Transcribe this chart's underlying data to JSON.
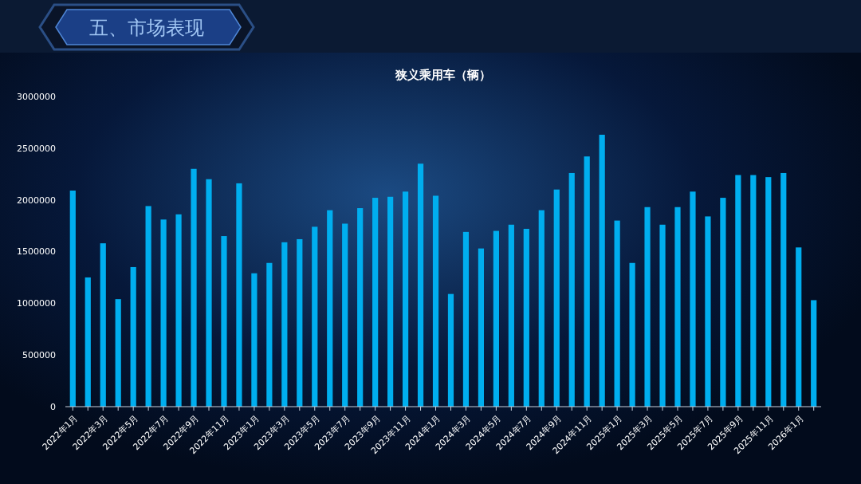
{
  "chart_data": {
    "type": "bar",
    "title": "狭义乘用车（辆）",
    "annotations": [
      "五、市场表现"
    ],
    "categories": [
      "2022年1月",
      null,
      "2022年3月",
      null,
      "2022年5月",
      null,
      "2022年7月",
      null,
      "2022年9月",
      null,
      "2022年11月",
      null,
      "2023年1月",
      null,
      "2023年3月",
      null,
      "2023年5月",
      null,
      "2023年7月",
      null,
      "2023年9月",
      null,
      "2023年11月",
      null,
      "2024年1月",
      null,
      "2024年3月",
      null,
      "2024年5月",
      null,
      "2024年7月",
      null,
      "2024年9月",
      null,
      "2024年11月",
      null,
      "2025年1月",
      null,
      "2025年3月",
      null,
      "2025年5月",
      null,
      "2025年7月",
      null,
      "2025年9月",
      null,
      "2025年11月",
      null,
      "2026年1月",
      null
    ],
    "values": [
      2090000,
      1250000,
      1580000,
      1040000,
      1350000,
      1940000,
      1810000,
      1860000,
      2300000,
      2200000,
      1650000,
      2160000,
      1290000,
      1390000,
      1590000,
      1620000,
      1740000,
      1900000,
      1770000,
      1920000,
      2020000,
      2030000,
      2080000,
      2350000,
      2040000,
      1090000,
      1690000,
      1530000,
      1700000,
      1760000,
      1720000,
      1900000,
      2100000,
      2260000,
      2420000,
      2630000,
      1800000,
      1390000,
      1930000,
      1760000,
      1930000,
      2080000,
      1840000,
      2020000,
      2240000,
      2240000,
      2220000,
      2260000,
      1540000,
      1030000
    ],
    "color": "#00aeef",
    "ylim": [
      0,
      3000000
    ],
    "yticks": [
      0,
      500000,
      1000000,
      1500000,
      2000000,
      2500000,
      3000000
    ],
    "grid": false
  }
}
